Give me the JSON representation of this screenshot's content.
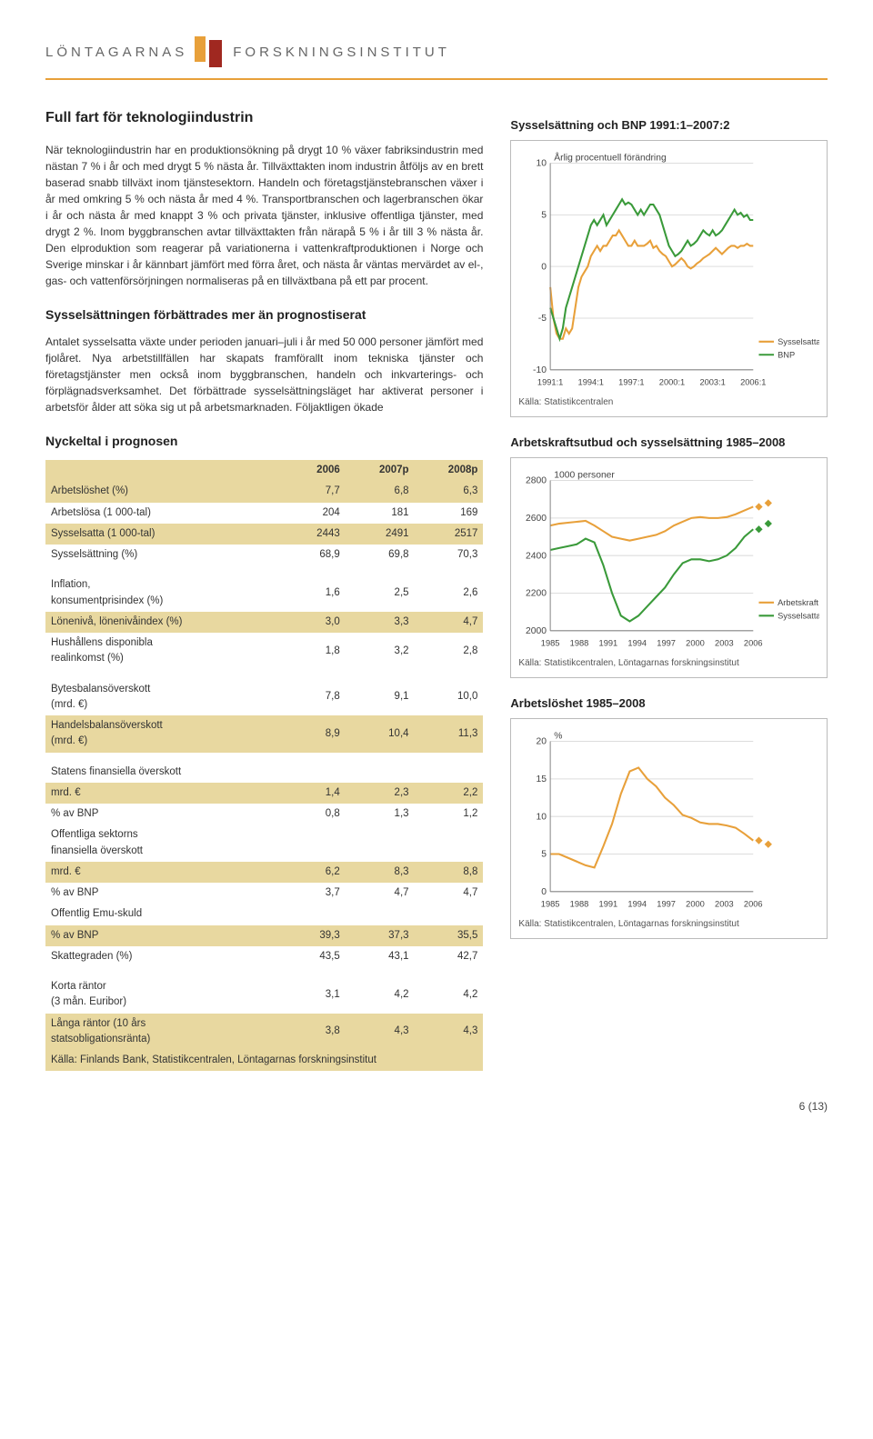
{
  "header": {
    "left": "LÖNTAGARNAS",
    "right": "FORSKNINGSINSTITUT"
  },
  "h1": "Full fart för teknologiindustrin",
  "p1": "När teknologiindustrin har en produktionsökning på drygt 10 % växer fabriksindustrin med nästan 7 % i år och med drygt 5 % nästa år. Tillväxttakten inom industrin åtföljs av en brett baserad snabb tillväxt inom tjänstesektorn. Handeln och företagstjänstebranschen växer i år med omkring 5 % och nästa år med 4 %. Transportbranschen och lagerbranschen ökar i år och nästa år med knappt 3 % och privata tjänster, inklusive offentliga tjänster, med drygt 2 %. Inom byggbranschen avtar tillväxttakten från närapå 5 % i år till 3 % nästa år. Den elproduktion som reagerar på variationerna i vattenkraftproduktionen i Norge och Sverige minskar i år kännbart jämfört med förra året, och nästa år väntas mervärdet av el-, gas- och vattenförsörjningen normaliseras på en tillväxtbana på ett par procent.",
  "h2a": "Sysselsättningen förbättrades mer än prognostiserat",
  "p2": "Antalet sysselsatta växte under perioden januari–juli i år med 50 000 personer jämfört med fjolåret. Nya arbetstillfällen har skapats framförallt inom tekniska tjänster och företagstjänster men också inom byggbranschen, handeln och inkvarterings- och förplägnadsverksamhet. Det förbättrade sysselsättningsläget har aktiverat personer i arbetsför ålder att söka sig ut på arbetsmarknaden. Följaktligen ökade",
  "h2b": "Nyckeltal i prognosen",
  "table": {
    "cols": [
      "",
      "2006",
      "2007p",
      "2008p"
    ],
    "rows": [
      {
        "shade": true,
        "cells": [
          "Arbetslöshet (%)",
          "7,7",
          "6,8",
          "6,3"
        ]
      },
      {
        "shade": false,
        "cells": [
          "Arbetslösa (1 000-tal)",
          "204",
          "181",
          "169"
        ]
      },
      {
        "shade": true,
        "cells": [
          "Sysselsatta (1 000-tal)",
          "2443",
          "2491",
          "2517"
        ]
      },
      {
        "shade": false,
        "cells": [
          "Sysselsättning (%)",
          "68,9",
          "69,8",
          "70,3"
        ]
      },
      {
        "spacer": true
      },
      {
        "shade": false,
        "cells": [
          "Inflation,\nkonsumentprisindex (%)",
          "1,6",
          "2,5",
          "2,6"
        ]
      },
      {
        "shade": true,
        "cells": [
          "Lönenivå, lönenivåindex (%)",
          "3,0",
          "3,3",
          "4,7"
        ]
      },
      {
        "shade": false,
        "cells": [
          "Hushållens disponibla\nrealinkomst (%)",
          "1,8",
          "3,2",
          "2,8"
        ]
      },
      {
        "spacer": true
      },
      {
        "shade": false,
        "cells": [
          "Bytesbalansöverskott\n(mrd. €)",
          "7,8",
          "9,1",
          "10,0"
        ]
      },
      {
        "shade": true,
        "cells": [
          "Handelsbalansöverskott\n(mrd. €)",
          "8,9",
          "10,4",
          "11,3"
        ]
      },
      {
        "spacer": true
      },
      {
        "shade": false,
        "cells": [
          "Statens finansiella överskott",
          "",
          "",
          ""
        ]
      },
      {
        "shade": true,
        "cells": [
          "   mrd. €",
          "1,4",
          "2,3",
          "2,2"
        ]
      },
      {
        "shade": false,
        "cells": [
          "   % av BNP",
          "0,8",
          "1,3",
          "1,2"
        ]
      },
      {
        "shade": false,
        "cells": [
          "Offentliga sektorns\nfinansiella överskott",
          "",
          "",
          ""
        ]
      },
      {
        "shade": true,
        "cells": [
          "   mrd. €",
          "6,2",
          "8,3",
          "8,8"
        ]
      },
      {
        "shade": false,
        "cells": [
          "   % av BNP",
          "3,7",
          "4,7",
          "4,7"
        ]
      },
      {
        "shade": false,
        "cells": [
          "Offentlig Emu-skuld",
          "",
          "",
          ""
        ]
      },
      {
        "shade": true,
        "cells": [
          "   % av BNP",
          "39,3",
          "37,3",
          "35,5"
        ]
      },
      {
        "shade": false,
        "cells": [
          "Skattegraden (%)",
          "43,5",
          "43,1",
          "42,7"
        ]
      },
      {
        "spacer": true
      },
      {
        "shade": false,
        "cells": [
          "Korta räntor\n(3 mån. Euribor)",
          "3,1",
          "4,2",
          "4,2"
        ]
      },
      {
        "shade": true,
        "cells": [
          "Långa räntor (10 års\nstatsobligationsränta)",
          "3,8",
          "4,3",
          "4,3"
        ]
      },
      {
        "shade": true,
        "cells": [
          "Källa: Finlands Bank, Statistikcentralen, Löntagarnas forskningsinstitut",
          "",
          "",
          ""
        ],
        "colspan": 4
      }
    ]
  },
  "chart1": {
    "title": "Sysselsättning och BNP 1991:1–2007:2",
    "note": "Årlig procentuell förändring",
    "ylim": [
      -10,
      10
    ],
    "yticks": [
      -10,
      -5,
      0,
      5,
      10
    ],
    "xlabels": [
      "1991:1",
      "1994:1",
      "1997:1",
      "2000:1",
      "2003:1",
      "2006:1"
    ],
    "series": [
      {
        "name": "Sysselsatta",
        "color": "#e8a03a",
        "data": [
          -2,
          -5,
          -6.5,
          -7,
          -7,
          -6,
          -6.5,
          -6,
          -4,
          -2,
          -1,
          -0.5,
          0,
          1,
          1.5,
          2,
          1.5,
          2,
          2,
          2.5,
          3,
          3,
          3.5,
          3,
          2.5,
          2,
          2,
          2.5,
          2,
          2,
          2,
          2.2,
          2.5,
          1.8,
          2,
          1.5,
          1.2,
          1,
          0.5,
          0,
          0.2,
          0.5,
          0.8,
          0.5,
          0,
          -0.2,
          0,
          0.3,
          0.5,
          0.8,
          1,
          1.2,
          1.5,
          1.8,
          1.5,
          1.2,
          1.5,
          1.8,
          2,
          2,
          1.8,
          2,
          2,
          2.2,
          2,
          2
        ]
      },
      {
        "name": "BNP",
        "color": "#3a9a3a",
        "data": [
          -4,
          -5,
          -6,
          -7,
          -6,
          -4,
          -3,
          -2,
          -1,
          0,
          1,
          2,
          3,
          4,
          4.5,
          4,
          4.5,
          5,
          4,
          4.5,
          5,
          5.5,
          6,
          6.5,
          6,
          6.2,
          6,
          5.5,
          5,
          5.5,
          5,
          5.5,
          6,
          6,
          5.5,
          5,
          4,
          3,
          2,
          1.5,
          1,
          1.2,
          1.5,
          2,
          2.5,
          2,
          2.2,
          2.5,
          3,
          3.5,
          3.2,
          3,
          3.5,
          3,
          3.2,
          3.5,
          4,
          4.5,
          5,
          5.5,
          5,
          5.2,
          4.8,
          5,
          4.5,
          4.5
        ]
      }
    ],
    "src": "Källa: Statistikcentralen"
  },
  "chart2": {
    "title": "Arbetskraftsutbud och sysselsättning 1985–2008",
    "note": "1000 personer",
    "ylim": [
      2000,
      2800
    ],
    "yticks": [
      2000,
      2200,
      2400,
      2600,
      2800
    ],
    "xlabels": [
      "1985",
      "1988",
      "1991",
      "1994",
      "1997",
      "2000",
      "2003",
      "2006"
    ],
    "series": [
      {
        "name": "Arbetskraft",
        "color": "#e8a03a",
        "data": [
          2560,
          2570,
          2575,
          2580,
          2585,
          2560,
          2530,
          2500,
          2490,
          2480,
          2490,
          2500,
          2510,
          2530,
          2560,
          2580,
          2600,
          2605,
          2600,
          2600,
          2605,
          2620,
          2640,
          2660
        ]
      },
      {
        "name": "Sysselsatta",
        "color": "#3a9a3a",
        "data": [
          2430,
          2440,
          2450,
          2460,
          2490,
          2470,
          2350,
          2200,
          2080,
          2050,
          2080,
          2130,
          2180,
          2230,
          2300,
          2360,
          2380,
          2380,
          2370,
          2380,
          2400,
          2440,
          2500,
          2540
        ]
      }
    ],
    "forecast": {
      "Arbetskraft": [
        2660,
        2680
      ],
      "Sysselsatta": [
        2540,
        2570
      ]
    },
    "src": "Källa: Statistikcentralen, Löntagarnas forskningsinstitut"
  },
  "chart3": {
    "title": "Arbetslöshet 1985–2008",
    "note": "%",
    "ylim": [
      0,
      20
    ],
    "yticks": [
      0,
      5,
      10,
      15,
      20
    ],
    "xlabels": [
      "1985",
      "1988",
      "1991",
      "1994",
      "1997",
      "2000",
      "2003",
      "2006"
    ],
    "series": [
      {
        "name": "Arbetslöshet",
        "color": "#e8a03a",
        "data": [
          5,
          5,
          4.5,
          4,
          3.5,
          3.2,
          6,
          9,
          13,
          16,
          16.5,
          15,
          14,
          12.5,
          11.5,
          10.2,
          9.8,
          9.2,
          9,
          9,
          8.8,
          8.5,
          7.7,
          6.8
        ]
      }
    ],
    "forecast": {
      "Arbetslöshet": [
        6.8,
        6.3
      ]
    },
    "src": "Källa: Statistikcentralen, Löntagarnas forskningsinstitut"
  },
  "page": "6 (13)"
}
